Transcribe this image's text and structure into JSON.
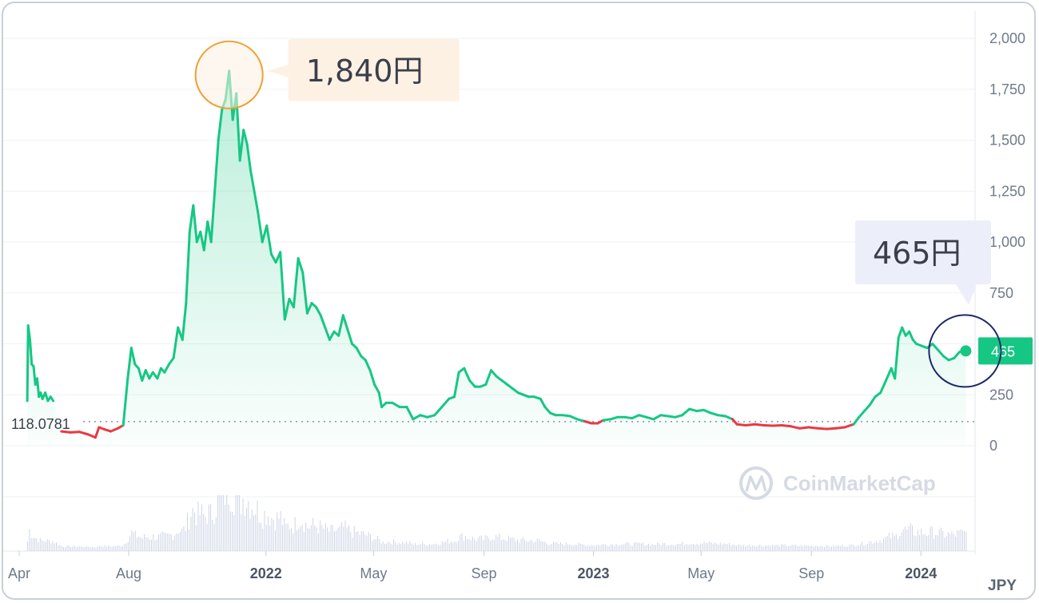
{
  "chart_data": {
    "type": "line",
    "currency": "JPY",
    "baseline_label": "118.0781",
    "baseline_value": 118.0781,
    "ylim": [
      0,
      2000
    ],
    "y_ticks": [
      "0",
      "250",
      "500",
      "750",
      "1,000",
      "1,250",
      "1,500",
      "1,750",
      "2,000"
    ],
    "y_tick_values": [
      0,
      250,
      500,
      750,
      1000,
      1250,
      1500,
      1750,
      2000
    ],
    "x_ticks": [
      {
        "label": "Apr",
        "date": "2021-04-01",
        "bold": false
      },
      {
        "label": "Aug",
        "date": "2021-08-01",
        "bold": false
      },
      {
        "label": "2022",
        "date": "2022-01-01",
        "bold": true
      },
      {
        "label": "May",
        "date": "2022-05-01",
        "bold": false
      },
      {
        "label": "Sep",
        "date": "2022-09-01",
        "bold": false
      },
      {
        "label": "2023",
        "date": "2023-01-01",
        "bold": true
      },
      {
        "label": "May",
        "date": "2023-05-01",
        "bold": false
      },
      {
        "label": "Sep",
        "date": "2023-09-01",
        "bold": false
      },
      {
        "label": "2024",
        "date": "2024-01-01",
        "bold": true
      }
    ],
    "xlim": [
      "2021-04-01",
      "2024-02-25"
    ],
    "current_price_badge": "465",
    "watermark": "CoinMarketCap",
    "colors": {
      "up": "#16c784",
      "down": "#ea3943",
      "fill": "#16c784",
      "badge": "#16c784",
      "volume": "#cfd5e6",
      "grid": "#eff2f5"
    },
    "annotations": [
      {
        "label": "1,840円",
        "date": "2021-11-21",
        "value": 1840,
        "marker_color": "#f0a030",
        "box_color": "#fdf1e4"
      },
      {
        "label": "465円",
        "date": "2024-02-20",
        "value": 465,
        "marker_color": "#1b2a6b",
        "box_color": "#eceff9"
      }
    ],
    "price_series": [
      [
        "2021-04-10",
        220
      ],
      [
        "2021-04-11",
        590
      ],
      [
        "2021-04-13",
        520
      ],
      [
        "2021-04-15",
        400
      ],
      [
        "2021-04-17",
        390
      ],
      [
        "2021-04-19",
        300
      ],
      [
        "2021-04-21",
        330
      ],
      [
        "2021-04-23",
        240
      ],
      [
        "2021-04-25",
        260
      ],
      [
        "2021-04-27",
        230
      ],
      [
        "2021-04-30",
        260
      ],
      [
        "2021-05-03",
        220
      ],
      [
        "2021-05-06",
        240
      ],
      [
        "2021-05-09",
        220
      ],
      [
        "2021-05-18",
        70
      ],
      [
        "2021-05-28",
        65
      ],
      [
        "2021-06-07",
        68
      ],
      [
        "2021-06-17",
        55
      ],
      [
        "2021-06-25",
        40
      ],
      [
        "2021-06-29",
        90
      ],
      [
        "2021-07-05",
        80
      ],
      [
        "2021-07-12",
        70
      ],
      [
        "2021-07-20",
        85
      ],
      [
        "2021-07-26",
        100
      ],
      [
        "2021-07-31",
        330
      ],
      [
        "2021-08-04",
        480
      ],
      [
        "2021-08-08",
        400
      ],
      [
        "2021-08-12",
        380
      ],
      [
        "2021-08-16",
        320
      ],
      [
        "2021-08-20",
        370
      ],
      [
        "2021-08-24",
        330
      ],
      [
        "2021-08-28",
        360
      ],
      [
        "2021-09-02",
        330
      ],
      [
        "2021-09-06",
        380
      ],
      [
        "2021-09-10",
        360
      ],
      [
        "2021-09-15",
        400
      ],
      [
        "2021-09-20",
        430
      ],
      [
        "2021-09-25",
        580
      ],
      [
        "2021-09-30",
        520
      ],
      [
        "2021-10-04",
        700
      ],
      [
        "2021-10-08",
        1050
      ],
      [
        "2021-10-12",
        1180
      ],
      [
        "2021-10-16",
        1000
      ],
      [
        "2021-10-20",
        1050
      ],
      [
        "2021-10-24",
        960
      ],
      [
        "2021-10-28",
        1100
      ],
      [
        "2021-11-01",
        1000
      ],
      [
        "2021-11-05",
        1250
      ],
      [
        "2021-11-09",
        1500
      ],
      [
        "2021-11-13",
        1650
      ],
      [
        "2021-11-17",
        1700
      ],
      [
        "2021-11-21",
        1840
      ],
      [
        "2021-11-25",
        1600
      ],
      [
        "2021-11-29",
        1730
      ],
      [
        "2021-12-03",
        1400
      ],
      [
        "2021-12-07",
        1550
      ],
      [
        "2021-12-11",
        1480
      ],
      [
        "2021-12-15",
        1350
      ],
      [
        "2021-12-19",
        1250
      ],
      [
        "2021-12-23",
        1150
      ],
      [
        "2021-12-28",
        1000
      ],
      [
        "2022-01-02",
        1080
      ],
      [
        "2022-01-07",
        940
      ],
      [
        "2022-01-12",
        900
      ],
      [
        "2022-01-17",
        950
      ],
      [
        "2022-01-22",
        620
      ],
      [
        "2022-01-27",
        720
      ],
      [
        "2022-02-01",
        680
      ],
      [
        "2022-02-06",
        920
      ],
      [
        "2022-02-11",
        850
      ],
      [
        "2022-02-16",
        650
      ],
      [
        "2022-02-21",
        700
      ],
      [
        "2022-02-26",
        680
      ],
      [
        "2022-03-03",
        640
      ],
      [
        "2022-03-08",
        580
      ],
      [
        "2022-03-13",
        520
      ],
      [
        "2022-03-18",
        560
      ],
      [
        "2022-03-23",
        540
      ],
      [
        "2022-03-28",
        640
      ],
      [
        "2022-04-02",
        570
      ],
      [
        "2022-04-07",
        500
      ],
      [
        "2022-04-12",
        480
      ],
      [
        "2022-04-17",
        440
      ],
      [
        "2022-04-22",
        420
      ],
      [
        "2022-04-27",
        370
      ],
      [
        "2022-05-02",
        300
      ],
      [
        "2022-05-07",
        260
      ],
      [
        "2022-05-10",
        190
      ],
      [
        "2022-05-15",
        210
      ],
      [
        "2022-05-22",
        210
      ],
      [
        "2022-05-30",
        190
      ],
      [
        "2022-06-07",
        190
      ],
      [
        "2022-06-14",
        130
      ],
      [
        "2022-06-22",
        150
      ],
      [
        "2022-06-30",
        140
      ],
      [
        "2022-07-08",
        150
      ],
      [
        "2022-07-16",
        190
      ],
      [
        "2022-07-24",
        230
      ],
      [
        "2022-07-30",
        240
      ],
      [
        "2022-08-04",
        360
      ],
      [
        "2022-08-10",
        380
      ],
      [
        "2022-08-16",
        320
      ],
      [
        "2022-08-22",
        290
      ],
      [
        "2022-08-28",
        290
      ],
      [
        "2022-09-03",
        300
      ],
      [
        "2022-09-09",
        370
      ],
      [
        "2022-09-15",
        340
      ],
      [
        "2022-09-21",
        320
      ],
      [
        "2022-09-27",
        300
      ],
      [
        "2022-10-03",
        280
      ],
      [
        "2022-10-09",
        260
      ],
      [
        "2022-10-15",
        250
      ],
      [
        "2022-10-21",
        240
      ],
      [
        "2022-10-27",
        240
      ],
      [
        "2022-11-03",
        230
      ],
      [
        "2022-11-08",
        190
      ],
      [
        "2022-11-14",
        160
      ],
      [
        "2022-11-20",
        150
      ],
      [
        "2022-11-28",
        150
      ],
      [
        "2022-12-06",
        145
      ],
      [
        "2022-12-14",
        130
      ],
      [
        "2022-12-22",
        120
      ],
      [
        "2022-12-30",
        110
      ],
      [
        "2023-01-06",
        110
      ],
      [
        "2023-01-12",
        125
      ],
      [
        "2023-01-20",
        130
      ],
      [
        "2023-01-28",
        140
      ],
      [
        "2023-02-05",
        140
      ],
      [
        "2023-02-13",
        135
      ],
      [
        "2023-02-21",
        150
      ],
      [
        "2023-03-01",
        140
      ],
      [
        "2023-03-09",
        130
      ],
      [
        "2023-03-17",
        150
      ],
      [
        "2023-03-25",
        145
      ],
      [
        "2023-04-02",
        140
      ],
      [
        "2023-04-10",
        150
      ],
      [
        "2023-04-18",
        180
      ],
      [
        "2023-04-26",
        170
      ],
      [
        "2023-05-04",
        175
      ],
      [
        "2023-05-12",
        160
      ],
      [
        "2023-05-20",
        150
      ],
      [
        "2023-05-28",
        145
      ],
      [
        "2023-06-05",
        130
      ],
      [
        "2023-06-10",
        105
      ],
      [
        "2023-06-20",
        100
      ],
      [
        "2023-06-30",
        105
      ],
      [
        "2023-07-10",
        100
      ],
      [
        "2023-07-20",
        98
      ],
      [
        "2023-07-30",
        100
      ],
      [
        "2023-08-09",
        95
      ],
      [
        "2023-08-19",
        85
      ],
      [
        "2023-08-29",
        90
      ],
      [
        "2023-09-08",
        85
      ],
      [
        "2023-09-18",
        82
      ],
      [
        "2023-09-28",
        85
      ],
      [
        "2023-10-08",
        90
      ],
      [
        "2023-10-18",
        105
      ],
      [
        "2023-10-24",
        140
      ],
      [
        "2023-10-30",
        170
      ],
      [
        "2023-11-05",
        200
      ],
      [
        "2023-11-11",
        240
      ],
      [
        "2023-11-17",
        260
      ],
      [
        "2023-11-23",
        320
      ],
      [
        "2023-11-29",
        380
      ],
      [
        "2023-12-03",
        330
      ],
      [
        "2023-12-07",
        530
      ],
      [
        "2023-12-11",
        580
      ],
      [
        "2023-12-15",
        540
      ],
      [
        "2023-12-19",
        560
      ],
      [
        "2023-12-23",
        520
      ],
      [
        "2023-12-27",
        500
      ],
      [
        "2024-01-02",
        490
      ],
      [
        "2024-01-08",
        480
      ],
      [
        "2024-01-14",
        500
      ],
      [
        "2024-01-20",
        470
      ],
      [
        "2024-01-26",
        440
      ],
      [
        "2024-02-01",
        420
      ],
      [
        "2024-02-07",
        430
      ],
      [
        "2024-02-13",
        460
      ],
      [
        "2024-02-20",
        465
      ]
    ]
  }
}
